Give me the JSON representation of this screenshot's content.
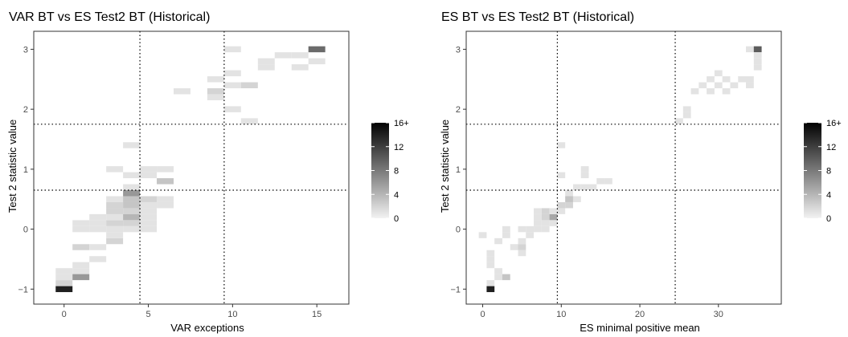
{
  "chart_data": [
    {
      "type": "heatmap",
      "title": "VAR BT vs ES Test2 BT (Historical)",
      "xlabel": "VAR exceptions",
      "ylabel": "Test 2 statistic value",
      "xlim": [
        -1.8,
        16.9
      ],
      "ylim": [
        -1.25,
        3.3
      ],
      "xticks": [
        0,
        5,
        10,
        15
      ],
      "yticks": [
        -1,
        0,
        1,
        2,
        3
      ],
      "grid": false,
      "bin_w": 1,
      "bin_h": 0.1,
      "vlines": [
        4.5,
        9.5
      ],
      "hlines": [
        0.65,
        1.75
      ],
      "legend": {
        "labels": [
          "16+",
          "12",
          "8",
          "4",
          "0"
        ],
        "values": [
          16,
          12,
          8,
          4,
          0
        ],
        "max": 16,
        "placement": "right"
      },
      "bins": [
        [
          0,
          -1.0,
          14
        ],
        [
          0,
          -0.9,
          2
        ],
        [
          0,
          -0.8,
          1
        ],
        [
          0,
          -0.7,
          1
        ],
        [
          1,
          -0.7,
          1
        ],
        [
          1,
          -0.6,
          1
        ],
        [
          1,
          -0.8,
          6
        ],
        [
          2,
          -0.5,
          1
        ],
        [
          1,
          -0.3,
          2
        ],
        [
          2,
          -0.3,
          1
        ],
        [
          3,
          -0.2,
          2
        ],
        [
          3,
          -0.1,
          1
        ],
        [
          3,
          0.0,
          1
        ],
        [
          2,
          0.0,
          1
        ],
        [
          1,
          0.1,
          1
        ],
        [
          2,
          0.1,
          1
        ],
        [
          1,
          0.0,
          1
        ],
        [
          2,
          0.2,
          1
        ],
        [
          3,
          0.1,
          2
        ],
        [
          3,
          0.2,
          1
        ],
        [
          3,
          0.3,
          2
        ],
        [
          3,
          0.4,
          2
        ],
        [
          3,
          0.5,
          1
        ],
        [
          4,
          0.5,
          3
        ],
        [
          4,
          0.4,
          3
        ],
        [
          4,
          0.3,
          2
        ],
        [
          4,
          0.2,
          4
        ],
        [
          4,
          0.1,
          2
        ],
        [
          4,
          0.0,
          1
        ],
        [
          5,
          0.0,
          1
        ],
        [
          5,
          0.1,
          1
        ],
        [
          5,
          0.2,
          1
        ],
        [
          5,
          0.3,
          1
        ],
        [
          5,
          0.4,
          1
        ],
        [
          5,
          0.5,
          2
        ],
        [
          6,
          0.4,
          1
        ],
        [
          6,
          0.5,
          1
        ],
        [
          4,
          0.6,
          6
        ],
        [
          4,
          0.7,
          1
        ],
        [
          4,
          0.9,
          1
        ],
        [
          5,
          0.9,
          1
        ],
        [
          6,
          0.8,
          3
        ],
        [
          6,
          1.0,
          1
        ],
        [
          5,
          1.0,
          1
        ],
        [
          3,
          1.0,
          1
        ],
        [
          4,
          1.4,
          1
        ],
        [
          7,
          2.3,
          1
        ],
        [
          9,
          2.5,
          1
        ],
        [
          9,
          2.3,
          2
        ],
        [
          9,
          2.2,
          1
        ],
        [
          10,
          2.6,
          1
        ],
        [
          10,
          2.4,
          1
        ],
        [
          11,
          2.4,
          2
        ],
        [
          10,
          2.0,
          1
        ],
        [
          11,
          1.8,
          1
        ],
        [
          12,
          2.7,
          1
        ],
        [
          12,
          2.8,
          1
        ],
        [
          10,
          3.0,
          1
        ],
        [
          13,
          2.9,
          1
        ],
        [
          14,
          2.9,
          1
        ],
        [
          14,
          2.7,
          1
        ],
        [
          15,
          3.0,
          9
        ],
        [
          15,
          2.8,
          1
        ]
      ]
    },
    {
      "type": "heatmap",
      "title": "ES BT vs ES Test2 BT (Historical)",
      "xlabel": "ES minimal positive mean",
      "ylabel": "Test 2 statistic value",
      "xlim": [
        -2.1,
        38
      ],
      "ylim": [
        -1.25,
        3.3
      ],
      "xticks": [
        0,
        10,
        20,
        30
      ],
      "yticks": [
        -1,
        0,
        1,
        2,
        3
      ],
      "grid": false,
      "bin_w": 1,
      "bin_h": 0.1,
      "vlines": [
        9.5,
        24.5
      ],
      "hlines": [
        0.65,
        1.75
      ],
      "legend": {
        "labels": [
          "16+",
          "12",
          "8",
          "4",
          "0"
        ],
        "values": [
          16,
          12,
          8,
          4,
          0
        ],
        "max": 16,
        "placement": "right"
      },
      "bins": [
        [
          1,
          -1.0,
          14
        ],
        [
          1,
          -0.9,
          1
        ],
        [
          1,
          -0.6,
          1
        ],
        [
          1,
          -0.5,
          1
        ],
        [
          2,
          -0.8,
          1
        ],
        [
          3,
          -0.8,
          3
        ],
        [
          2,
          -0.7,
          1
        ],
        [
          1,
          -0.4,
          1
        ],
        [
          2,
          -0.2,
          1
        ],
        [
          3,
          -0.1,
          1
        ],
        [
          4,
          -0.3,
          1
        ],
        [
          5,
          -0.2,
          1
        ],
        [
          5,
          -0.4,
          1
        ],
        [
          5,
          -0.3,
          2
        ],
        [
          6,
          -0.1,
          1
        ],
        [
          6,
          0.0,
          1
        ],
        [
          7,
          0.0,
          1
        ],
        [
          7,
          0.2,
          1
        ],
        [
          7,
          0.1,
          1
        ],
        [
          8,
          0.1,
          1
        ],
        [
          8,
          0.2,
          2
        ],
        [
          8,
          0.3,
          2
        ],
        [
          9,
          0.2,
          5
        ],
        [
          9,
          0.1,
          1
        ],
        [
          8,
          0.0,
          1
        ],
        [
          7,
          0.3,
          1
        ],
        [
          9,
          0.3,
          1
        ],
        [
          10,
          0.3,
          1
        ],
        [
          10,
          0.4,
          2
        ],
        [
          11,
          0.4,
          2
        ],
        [
          11,
          0.5,
          3
        ],
        [
          11,
          0.6,
          1
        ],
        [
          12,
          0.5,
          1
        ],
        [
          12,
          0.7,
          1
        ],
        [
          13,
          0.7,
          1
        ],
        [
          14,
          0.7,
          1
        ],
        [
          15,
          0.8,
          1
        ],
        [
          16,
          0.8,
          1
        ],
        [
          13,
          0.9,
          1
        ],
        [
          13,
          1.0,
          1
        ],
        [
          10,
          1.4,
          1
        ],
        [
          10,
          0.9,
          1
        ],
        [
          5,
          0.0,
          1
        ],
        [
          0,
          -0.1,
          1
        ],
        [
          3,
          0.0,
          1
        ],
        [
          25,
          1.8,
          1
        ],
        [
          26,
          2.0,
          1
        ],
        [
          26,
          1.9,
          1
        ],
        [
          27,
          2.3,
          1
        ],
        [
          28,
          2.4,
          1
        ],
        [
          29,
          2.3,
          1
        ],
        [
          30,
          2.4,
          1
        ],
        [
          29,
          2.5,
          1
        ],
        [
          30,
          2.6,
          1
        ],
        [
          31,
          2.5,
          1
        ],
        [
          31,
          2.3,
          1
        ],
        [
          32,
          2.4,
          1
        ],
        [
          33,
          2.5,
          1
        ],
        [
          34,
          2.5,
          1
        ],
        [
          34,
          2.4,
          1
        ],
        [
          34,
          3.0,
          1
        ],
        [
          35,
          3.0,
          10
        ],
        [
          35,
          2.9,
          1
        ],
        [
          35,
          2.8,
          1
        ],
        [
          35,
          2.7,
          1
        ]
      ]
    }
  ]
}
